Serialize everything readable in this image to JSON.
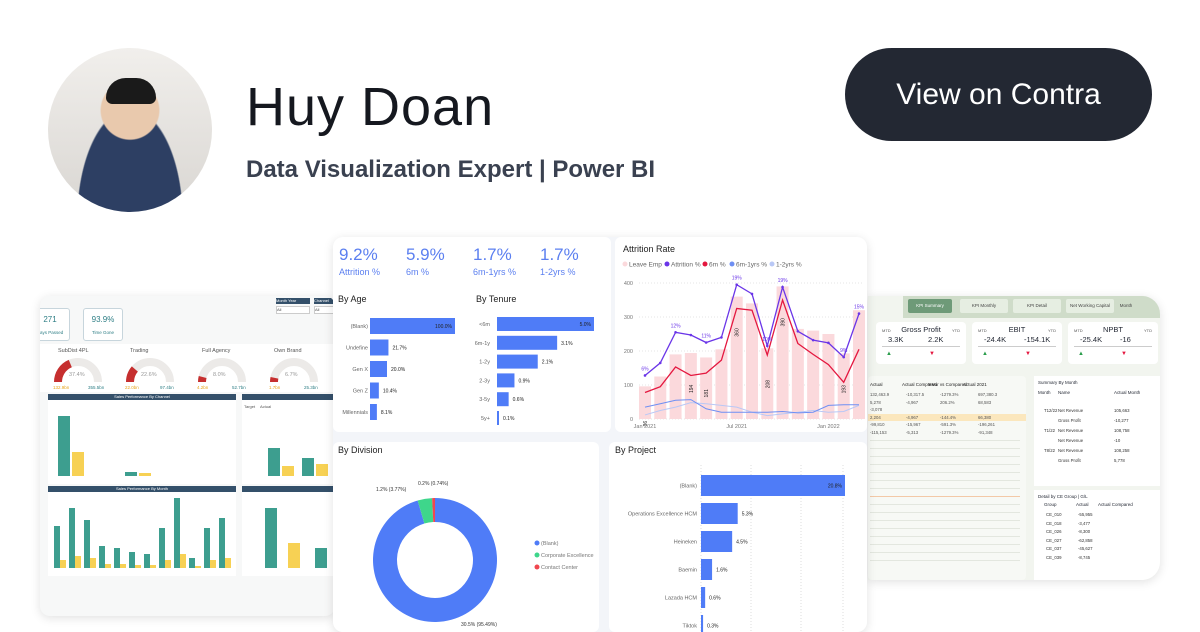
{
  "profile": {
    "name": "Huy Doan",
    "title": "Data Visualization Expert | Power BI",
    "cta_label": "View on Contra"
  },
  "colors": {
    "accent": "#4f7cf7",
    "button_bg": "#232833",
    "red": "#e4173f",
    "purple": "#6a35e8",
    "green": "#3ed68b",
    "teal": "#3d9e8f",
    "yellow": "#f7d154"
  },
  "center": {
    "kpis": [
      {
        "value": "9.2%",
        "label": "Attrition %"
      },
      {
        "value": "5.9%",
        "label": "6m %"
      },
      {
        "value": "1.7%",
        "label": "6m-1yrs %"
      },
      {
        "value": "1.7%",
        "label": "1-2yrs %"
      }
    ]
  },
  "chart_data": [
    {
      "type": "bar",
      "title": "By Age",
      "orientation": "horizontal",
      "categories": [
        "(Blank)",
        "Undefine",
        "Gen X",
        "Gen Z",
        "Millennials"
      ],
      "values": [
        100.0,
        21.7,
        20.0,
        10.4,
        8.1
      ],
      "labels": [
        "100.0%",
        "21.7%",
        "20.0%",
        "10.4%",
        "8.1%"
      ]
    },
    {
      "type": "bar",
      "title": "By Tenure",
      "orientation": "horizontal",
      "categories": [
        "<6m",
        "6m-1y",
        "1-2y",
        "2-3y",
        "3-5y",
        "5y+"
      ],
      "values": [
        5.0,
        3.1,
        2.1,
        0.9,
        0.6,
        0.1
      ],
      "labels": [
        "5.0%",
        "3.1%",
        "2.1%",
        "0.9%",
        "0.6%",
        "0.1%"
      ]
    },
    {
      "type": "line",
      "title": "Attrition Rate",
      "x_ticks": [
        "Jan 2021",
        "Jul 2021",
        "Jan 2022"
      ],
      "ylim": [
        0,
        400
      ],
      "y_ticks": [
        "0",
        "100",
        "200",
        "300",
        "400"
      ],
      "legend": [
        "Leave Emp",
        "Attrition %",
        "6m %",
        "6m-1yrs %",
        "1-2yrs %"
      ],
      "legend_position": "top",
      "grid": true,
      "series": [
        {
          "name": "Leave Emp",
          "kind": "bar",
          "color": "#fbd9dc",
          "values": [
            96,
            125,
            190,
            194,
            181,
            205,
            360,
            340,
            208,
            390,
            265,
            260,
            250,
            193,
            320
          ],
          "labels": [
            "96",
            "",
            "",
            "194",
            "181",
            "",
            "360",
            "",
            "208",
            "390",
            "",
            "",
            "",
            "193",
            ""
          ]
        },
        {
          "name": "Attrition %",
          "color": "#6a35e8",
          "values": [
            128,
            165,
            255,
            247,
            225,
            240,
            395,
            368,
            215,
            388,
            258,
            232,
            224,
            182,
            310
          ],
          "labels": [
            "6%",
            "",
            "12%",
            "",
            "11%",
            "",
            "19%",
            "",
            "10%",
            "19%",
            "",
            "",
            "",
            "9%",
            "15%"
          ]
        },
        {
          "name": "6m %",
          "color": "#e4173f",
          "values": [
            78,
            95,
            153,
            128,
            135,
            173,
            325,
            320,
            188,
            350,
            222,
            190,
            160,
            108,
            205
          ]
        },
        {
          "name": "6m-1yrs %",
          "color": "#6e8ff3",
          "values": [
            35,
            45,
            55,
            57,
            30,
            20,
            20,
            20,
            20,
            22,
            18,
            20,
            40,
            42,
            42
          ]
        },
        {
          "name": "1-2yrs %",
          "color": "#b9c8f6",
          "values": [
            12,
            25,
            35,
            48,
            45,
            40,
            35,
            20,
            10,
            15,
            20,
            25,
            20,
            22,
            40
          ]
        }
      ]
    },
    {
      "type": "pie",
      "title": "By Division",
      "donut": true,
      "categories": [
        "(Blank)",
        "Corporate Excellence",
        "Contact Center"
      ],
      "values": [
        95.49,
        3.77,
        0.74
      ],
      "labels": [
        "30.5% (95.49%)",
        "1.2% (3.77%)",
        "0.2% (0.74%)"
      ],
      "colors": [
        "#4f7cf7",
        "#3ed68b",
        "#f0474f"
      ],
      "legend_position": "right"
    },
    {
      "type": "bar",
      "title": "By Project",
      "orientation": "horizontal",
      "categories": [
        "(Blank)",
        "Operations Excellence HCM",
        "Heineken",
        "Baemin",
        "Lazada HCM",
        "Tiktok"
      ],
      "values": [
        20.8,
        5.3,
        4.5,
        1.6,
        0.6,
        0.3
      ],
      "labels": [
        "20.8%",
        "5.3%",
        "4.5%",
        "1.6%",
        "0.6%",
        "0.3%"
      ],
      "grid": true
    }
  ],
  "left": {
    "filters": [
      "Month Year",
      "Channel"
    ],
    "filter_values": [
      "All",
      "All"
    ],
    "kpis": [
      {
        "value": "271",
        "label": "Days Passed"
      },
      {
        "value": "93.9%",
        "label": "Time Gone"
      }
    ],
    "gauges": [
      {
        "label": "SubDist 4PL",
        "pct": "37.4%",
        "actual": "132.9bn",
        "target": "355.5bn",
        "fill": 0.374
      },
      {
        "label": "Trading",
        "pct": "22.6%",
        "actual": "22.0bn",
        "target": "97.4bn",
        "fill": 0.226
      },
      {
        "label": "Full Agency",
        "pct": "8.0%",
        "actual": "4.2bn",
        "target": "52.7bn",
        "fill": 0.08
      },
      {
        "label": "Own Brand",
        "pct": "6.7%",
        "actual": "1.7bn",
        "target": "25.3bn",
        "fill": 0.067
      }
    ],
    "chart_titles": [
      "Sales Performance By Channel",
      "Sales Performance By Month"
    ],
    "legend": [
      "Target",
      "Actual"
    ]
  },
  "right": {
    "tabs": [
      "KPI Summary",
      "KPI Monthly",
      "KPI Detail",
      "Net Working Capital",
      "Month"
    ],
    "cards": [
      {
        "title": "Gross Profit",
        "mtd": "3.3K",
        "ytd": "2.2K"
      },
      {
        "title": "EBIT",
        "mtd": "-24.4K",
        "ytd": "-154.1K"
      },
      {
        "title": "NPBT",
        "mtd": "-25.4K",
        "ytd": "-16"
      }
    ],
    "mtd_label": "MTD",
    "ytd_label": "YTD",
    "table_headers": [
      "Actual",
      "Actual Compared",
      "%Var vs Compared",
      "Actual 2021"
    ],
    "table_rows": [
      [
        "132,463.9",
        "-10,317.5",
        "-1279.3%",
        "697,380.3"
      ],
      [
        "5,278",
        "-4,967",
        "206.2%",
        "68,583"
      ],
      [
        "-3,078",
        "",
        "",
        ""
      ],
      [
        "2,204",
        "-4,967",
        "-144.4%",
        "66,380"
      ],
      [
        "-99,810",
        "-15,967",
        "-591.3%",
        "-196,261"
      ],
      [
        "-115,153",
        "-5,313",
        "-1279.3%",
        "-91,348"
      ]
    ],
    "summary_title": "Summary By Month",
    "summary_headers": [
      "Month",
      "Name",
      "Actual Month"
    ],
    "summary_rows": [
      [
        "T12/22",
        "Net Revenue",
        "105,663"
      ],
      [
        "",
        "Gross Profit",
        "-10,277"
      ],
      [
        "T1/22",
        "Net Revenue",
        "108,758"
      ],
      [
        "",
        "Net Revenue",
        "-10"
      ],
      [
        "T8/22",
        "Net Revenue",
        "108,258"
      ],
      [
        "",
        "Gross Profit",
        "5,778"
      ]
    ],
    "detail_title": "Detail by CE Group | G/L",
    "detail_headers": [
      "Group",
      "Actual",
      "Actual Compared"
    ],
    "detail_rows": [
      [
        "CE_010",
        "-55,955"
      ],
      [
        "CE_018",
        "-3,477"
      ],
      [
        "CE_026",
        "-8,300"
      ],
      [
        "CE_027",
        "-62,858"
      ],
      [
        "CE_037",
        "-45,627"
      ],
      [
        "CE_039",
        "-8,745"
      ]
    ]
  }
}
